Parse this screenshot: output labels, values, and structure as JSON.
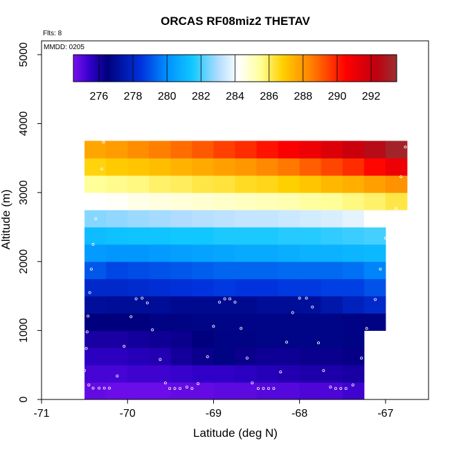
{
  "chart_data": {
    "type": "heatmap",
    "title": "ORCAS RF08miz2 THETAV",
    "xlabel": "Latitude (deg N)",
    "ylabel": "Altitude (m)",
    "xlim": [
      -71,
      -66.5
    ],
    "ylim": [
      0,
      5200
    ],
    "xticks": [
      -71,
      -70,
      -69,
      -68,
      -67
    ],
    "yticks": [
      0,
      1000,
      2000,
      3000,
      4000,
      5000
    ],
    "notes": {
      "flights": "Flts: 8",
      "date": "MMDD: 0205"
    },
    "colorbar": {
      "range": [
        274.5,
        293.5
      ],
      "ticks": [
        276,
        278,
        280,
        282,
        284,
        286,
        288,
        290,
        292
      ],
      "dividers": [
        276,
        278,
        280,
        282,
        284,
        286,
        288,
        290,
        292
      ],
      "stops": [
        [
          274.5,
          "#7a10f0"
        ],
        [
          275.5,
          "#3000c8"
        ],
        [
          276.5,
          "#00007e"
        ],
        [
          278.5,
          "#0033dd"
        ],
        [
          280.0,
          "#0090ff"
        ],
        [
          281.5,
          "#10c8ff"
        ],
        [
          283.0,
          "#b0dcff"
        ],
        [
          284.2,
          "#ffffff"
        ],
        [
          285.5,
          "#ffff99"
        ],
        [
          286.8,
          "#ffd000"
        ],
        [
          288.5,
          "#ff7f00"
        ],
        [
          290.5,
          "#ff0000"
        ],
        [
          292.3,
          "#c00010"
        ],
        [
          293.5,
          "#993030"
        ]
      ]
    },
    "grid_x_edges": [
      -70.5,
      -70.25,
      -70.0,
      -69.75,
      -69.5,
      -69.25,
      -69.0,
      -68.75,
      -68.5,
      -68.25,
      -68.0,
      -67.75,
      -67.5,
      -67.25,
      -67.0,
      -66.75
    ],
    "grid_alt_bottoms": [
      0,
      250,
      500,
      750,
      1000,
      1250,
      1500,
      1750,
      2000,
      2250,
      2500,
      2750,
      3000,
      3250,
      3500
    ],
    "grid_alt_height": 250,
    "grid_values": [
      [
        274.8,
        274.7,
        274.7,
        274.7,
        274.8,
        274.8,
        274.9,
        274.9,
        275.0,
        275.0,
        275.1,
        275.1,
        275.3,
        null,
        null
      ],
      [
        275.2,
        275.2,
        275.3,
        275.3,
        275.4,
        275.5,
        275.5,
        275.6,
        275.7,
        275.8,
        275.9,
        275.9,
        276.0,
        null,
        null
      ],
      [
        275.6,
        275.6,
        275.7,
        275.8,
        276.1,
        276.3,
        276.6,
        276.3,
        276.2,
        276.2,
        276.3,
        276.3,
        276.4,
        null,
        null
      ],
      [
        276.0,
        276.0,
        276.1,
        276.2,
        276.3,
        276.5,
        276.6,
        276.6,
        276.7,
        276.7,
        276.7,
        276.7,
        276.6,
        null,
        null
      ],
      [
        276.5,
        276.5,
        276.5,
        276.6,
        276.6,
        276.7,
        276.7,
        276.7,
        276.7,
        276.7,
        276.7,
        276.7,
        276.6,
        276.6,
        null
      ],
      [
        277.1,
        277.0,
        277.0,
        277.0,
        276.9,
        276.9,
        276.9,
        276.9,
        277.0,
        277.0,
        277.1,
        277.4,
        277.8,
        278.1,
        null
      ],
      [
        278.1,
        278.1,
        278.2,
        278.3,
        278.4,
        278.5,
        278.6,
        278.5,
        278.5,
        278.6,
        278.6,
        278.7,
        278.7,
        279.0,
        null
      ],
      [
        279.1,
        278.8,
        278.9,
        279.0,
        279.1,
        279.2,
        279.3,
        279.3,
        279.3,
        279.4,
        279.4,
        279.4,
        279.5,
        279.8,
        null
      ],
      [
        280.3,
        280.2,
        280.2,
        280.3,
        280.4,
        280.5,
        280.6,
        280.7,
        280.7,
        280.8,
        280.9,
        280.9,
        281.0,
        281.1,
        null
      ],
      [
        281.2,
        281.3,
        281.4,
        281.4,
        281.5,
        281.5,
        281.6,
        281.6,
        281.6,
        281.7,
        281.7,
        281.8,
        281.9,
        282.0,
        null
      ],
      [
        282.6,
        282.7,
        282.8,
        282.9,
        283.0,
        283.1,
        283.2,
        283.3,
        283.3,
        283.4,
        283.5,
        283.6,
        283.8,
        284.2,
        null
      ],
      [
        284.2,
        284.3,
        284.5,
        284.6,
        284.7,
        284.8,
        284.9,
        285.0,
        285.1,
        285.2,
        285.4,
        285.5,
        285.7,
        285.9,
        286.2
      ],
      [
        285.5,
        285.6,
        285.7,
        285.9,
        286.0,
        286.2,
        286.3,
        286.5,
        286.6,
        286.8,
        287.0,
        287.3,
        287.5,
        287.8,
        288.1
      ],
      [
        286.7,
        286.9,
        287.0,
        287.2,
        287.4,
        287.6,
        287.8,
        288.0,
        288.3,
        288.6,
        289.0,
        289.4,
        289.8,
        290.4,
        291.0
      ],
      [
        287.7,
        287.9,
        288.2,
        288.5,
        288.8,
        289.1,
        289.5,
        289.8,
        290.2,
        290.6,
        291.0,
        291.5,
        292.0,
        292.6,
        293.2
      ]
    ],
    "flight_points": [
      [
        -70.45,
        210
      ],
      [
        -70.4,
        165
      ],
      [
        -70.33,
        165
      ],
      [
        -70.27,
        165
      ],
      [
        -70.21,
        165
      ],
      [
        -70.12,
        340
      ],
      [
        -70.5,
        420
      ],
      [
        -70.48,
        740
      ],
      [
        -70.47,
        980
      ],
      [
        -70.46,
        1210
      ],
      [
        -70.44,
        1550
      ],
      [
        -70.42,
        1890
      ],
      [
        -70.4,
        2250
      ],
      [
        -70.37,
        2620
      ],
      [
        -70.3,
        3340
      ],
      [
        -70.28,
        3730
      ],
      [
        -70.04,
        770
      ],
      [
        -69.96,
        1200
      ],
      [
        -69.9,
        1460
      ],
      [
        -69.83,
        1470
      ],
      [
        -69.77,
        1400
      ],
      [
        -69.71,
        1010
      ],
      [
        -69.62,
        580
      ],
      [
        -69.56,
        240
      ],
      [
        -69.51,
        160
      ],
      [
        -69.45,
        160
      ],
      [
        -69.39,
        160
      ],
      [
        -69.31,
        180
      ],
      [
        -69.25,
        160
      ],
      [
        -69.18,
        230
      ],
      [
        -69.07,
        620
      ],
      [
        -69.0,
        1060
      ],
      [
        -68.93,
        1410
      ],
      [
        -68.87,
        1460
      ],
      [
        -68.81,
        1460
      ],
      [
        -68.75,
        1410
      ],
      [
        -68.68,
        1030
      ],
      [
        -68.61,
        600
      ],
      [
        -68.55,
        240
      ],
      [
        -68.48,
        160
      ],
      [
        -68.42,
        160
      ],
      [
        -68.36,
        160
      ],
      [
        -68.3,
        160
      ],
      [
        -68.22,
        400
      ],
      [
        -68.15,
        830
      ],
      [
        -68.08,
        1260
      ],
      [
        -68.0,
        1470
      ],
      [
        -67.92,
        1470
      ],
      [
        -67.85,
        1340
      ],
      [
        -67.78,
        820
      ],
      [
        -67.72,
        420
      ],
      [
        -67.64,
        180
      ],
      [
        -67.58,
        160
      ],
      [
        -67.52,
        160
      ],
      [
        -67.46,
        160
      ],
      [
        -67.38,
        210
      ],
      [
        -67.28,
        600
      ],
      [
        -67.22,
        1030
      ],
      [
        -67.12,
        1450
      ],
      [
        -67.06,
        1890
      ],
      [
        -67.0,
        2340
      ],
      [
        -66.98,
        2650
      ],
      [
        -66.88,
        2770
      ],
      [
        -66.82,
        3230
      ],
      [
        -66.77,
        3660
      ]
    ]
  }
}
